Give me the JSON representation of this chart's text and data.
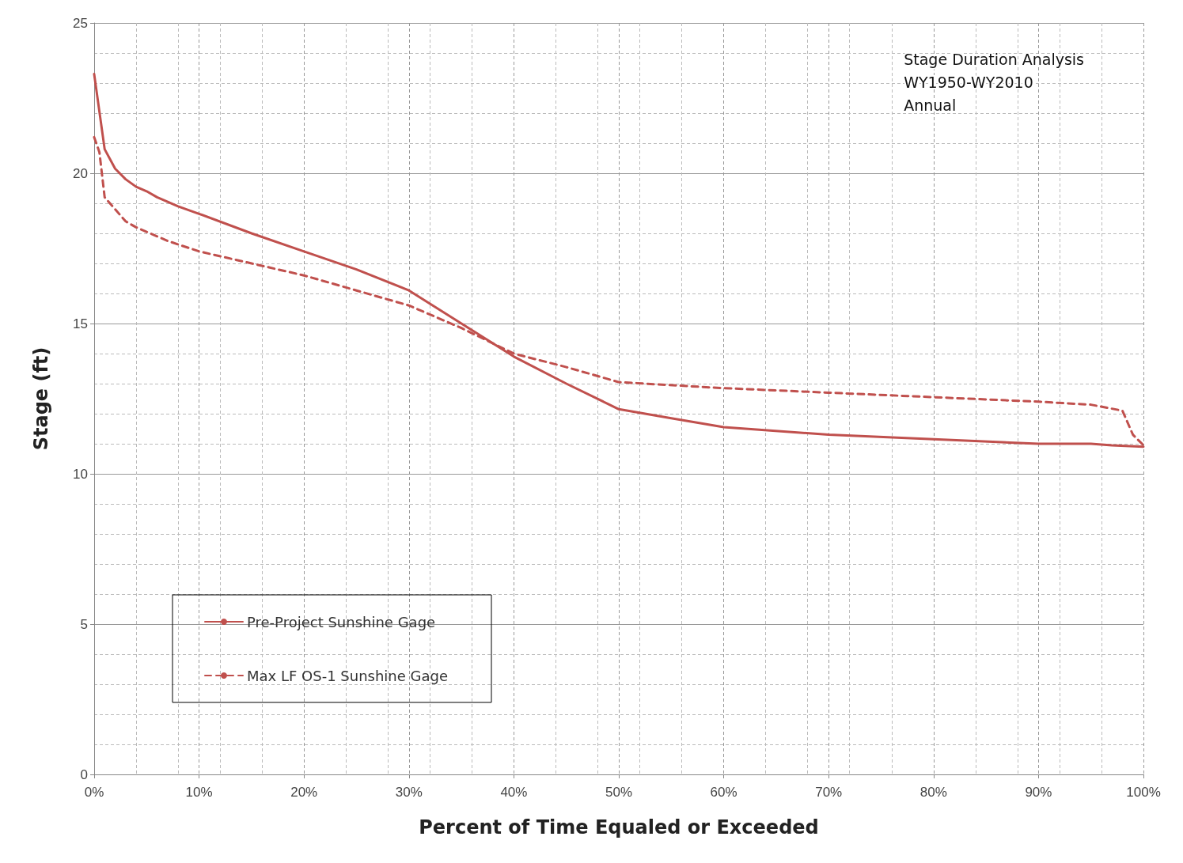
{
  "chart_data": {
    "type": "line",
    "xlabel": "Percent of Time Equaled or Exceeded",
    "ylabel": "Stage (ft)",
    "annotations": [
      "Stage Duration Analysis\nWY1950-WY2010\nAnnual"
    ],
    "xlim": [
      0,
      100
    ],
    "xticks": [
      {
        "value": 0,
        "label": "0%"
      },
      {
        "value": 10,
        "label": "10%"
      },
      {
        "value": 20,
        "label": "20%"
      },
      {
        "value": 30,
        "label": "30%"
      },
      {
        "value": 40,
        "label": "40%"
      },
      {
        "value": 50,
        "label": "50%"
      },
      {
        "value": 60,
        "label": "60%"
      },
      {
        "value": 70,
        "label": "70%"
      },
      {
        "value": 80,
        "label": "80%"
      },
      {
        "value": 90,
        "label": "90%"
      },
      {
        "value": 100,
        "label": "100%"
      }
    ],
    "ylim": [
      0,
      25
    ],
    "yticks": [
      0,
      5,
      10,
      15,
      20,
      25
    ],
    "grid": true,
    "legend": "bottom left",
    "marker": "none",
    "series": [
      {
        "name": "Pre-Project Sunshine Gage",
        "color": "#c0504d",
        "line_style": "solid",
        "x": [
          0,
          1,
          2,
          3,
          4,
          5,
          6,
          8,
          10,
          15,
          20,
          25,
          30,
          35,
          40,
          45,
          50,
          55,
          60,
          70,
          80,
          90,
          95,
          97,
          100
        ],
        "values": [
          23.3,
          20.8,
          20.15,
          19.8,
          19.55,
          19.4,
          19.2,
          18.9,
          18.65,
          18.0,
          17.4,
          16.8,
          16.1,
          15.0,
          13.9,
          13.0,
          12.15,
          11.85,
          11.55,
          11.3,
          11.15,
          11.0,
          11.0,
          10.95,
          10.9
        ]
      },
      {
        "name": "Max LF OS-1 Sunshine Gage",
        "color": "#c0504d",
        "line_style": "dashed",
        "x": [
          0,
          0.5,
          1,
          2,
          3,
          4,
          5,
          7,
          10,
          15,
          20,
          25,
          30,
          35,
          40,
          45,
          50,
          60,
          70,
          80,
          90,
          95,
          98,
          99,
          100
        ],
        "values": [
          21.2,
          20.7,
          19.2,
          18.8,
          18.4,
          18.2,
          18.05,
          17.75,
          17.4,
          17.0,
          16.6,
          16.1,
          15.6,
          14.85,
          14.0,
          13.55,
          13.05,
          12.85,
          12.7,
          12.55,
          12.4,
          12.3,
          12.1,
          11.3,
          10.95
        ]
      }
    ]
  }
}
